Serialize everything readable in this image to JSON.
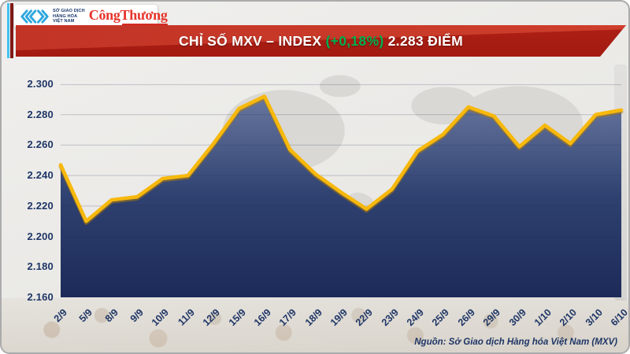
{
  "brand": {
    "exchange_name_lines": [
      "SỞ GIAO DỊCH",
      "HÀNG HÓA",
      "VIỆT NAM"
    ],
    "newspaper_name": [
      "Công",
      "Thương"
    ],
    "colors": {
      "stripe_cyan": "#45C1F0",
      "stripe_dark_red": "#7E1A16",
      "chevron_blue": "#2FA7DE",
      "newspaper_red": "#E6342B"
    }
  },
  "banner": {
    "title_main": "CHỈ SỐ MXV – INDEX",
    "title_change": "(+0,18%)",
    "title_value": "2.283 ĐIỂM",
    "change_color": "#00B050",
    "bg_color": "#B02118"
  },
  "source_note": "Nguồn: Sở Giao dịch Hàng hóa Việt Nam (MXV)",
  "chart_data": {
    "type": "area",
    "title": "CHỈ SỐ MXV – INDEX (+0,18%) 2.283 ĐIỂM",
    "x": [
      "2/9",
      "5/9",
      "8/9",
      "9/9",
      "10/9",
      "11/9",
      "12/9",
      "15/9",
      "16/9",
      "17/9",
      "18/9",
      "19/9",
      "22/9",
      "23/9",
      "24/9",
      "25/9",
      "26/9",
      "29/9",
      "30/9",
      "1/10",
      "2/10",
      "3/10",
      "6/10"
    ],
    "values": [
      2.247,
      2.21,
      2.224,
      2.226,
      2.238,
      2.24,
      2.261,
      2.284,
      2.292,
      2.257,
      2.241,
      2.229,
      2.218,
      2.231,
      2.256,
      2.267,
      2.285,
      2.279,
      2.259,
      2.273,
      2.261,
      2.28,
      2.283
    ],
    "ylim": [
      2.16,
      2.3
    ],
    "ytick_step": 0.02,
    "ytick_labels": [
      "2.300",
      "2.280",
      "2.260",
      "2.240",
      "2.220",
      "2.200",
      "2.180",
      "2.160"
    ],
    "grid": true,
    "legend": "none",
    "line_color": "#F7B80C",
    "area_top_color": "#68779F",
    "area_mid_color": "#2F4170",
    "area_bottom_color": "#1C2A58",
    "label_color": "#1E3566"
  }
}
